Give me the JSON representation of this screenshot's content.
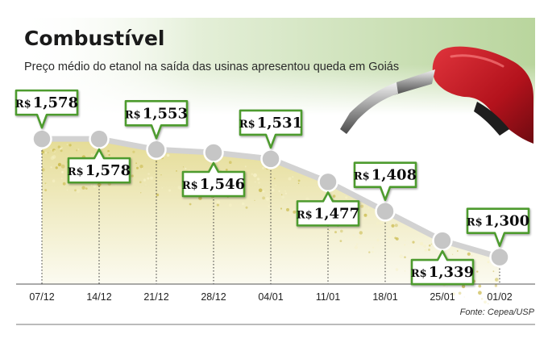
{
  "chart_data": {
    "type": "line",
    "title": "Combustível",
    "subtitle": "Preço médio do etanol na saída das usinas apresentou queda em Goiás",
    "source": "Fonte: Cepea/USP",
    "currency": "R$",
    "categories": [
      "07/12",
      "14/12",
      "21/12",
      "28/12",
      "04/01",
      "11/01",
      "18/01",
      "25/01",
      "01/02"
    ],
    "values": [
      1.578,
      1.578,
      1.553,
      1.546,
      1.531,
      1.477,
      1.408,
      1.339,
      1.3
    ],
    "value_labels": [
      "1,578",
      "1,578",
      "1,553",
      "1,546",
      "1,531",
      "1,477",
      "1,408",
      "1,339",
      "1,300"
    ],
    "label_positions": [
      "above",
      "below",
      "above",
      "below",
      "above",
      "below",
      "above",
      "below",
      "above"
    ],
    "ylim": [
      1.25,
      1.62
    ],
    "grid": false,
    "legend": "none"
  },
  "colors": {
    "header_green": "#c6dcae",
    "label_border": "#4e9b2f",
    "line": "#d2d2d2",
    "marker": "#c8c8c8",
    "fill": "#e9e3a6",
    "pump": "#b3121c",
    "frame": "#666666"
  },
  "icons": {
    "decoration": "fuel-nozzle-icon"
  }
}
